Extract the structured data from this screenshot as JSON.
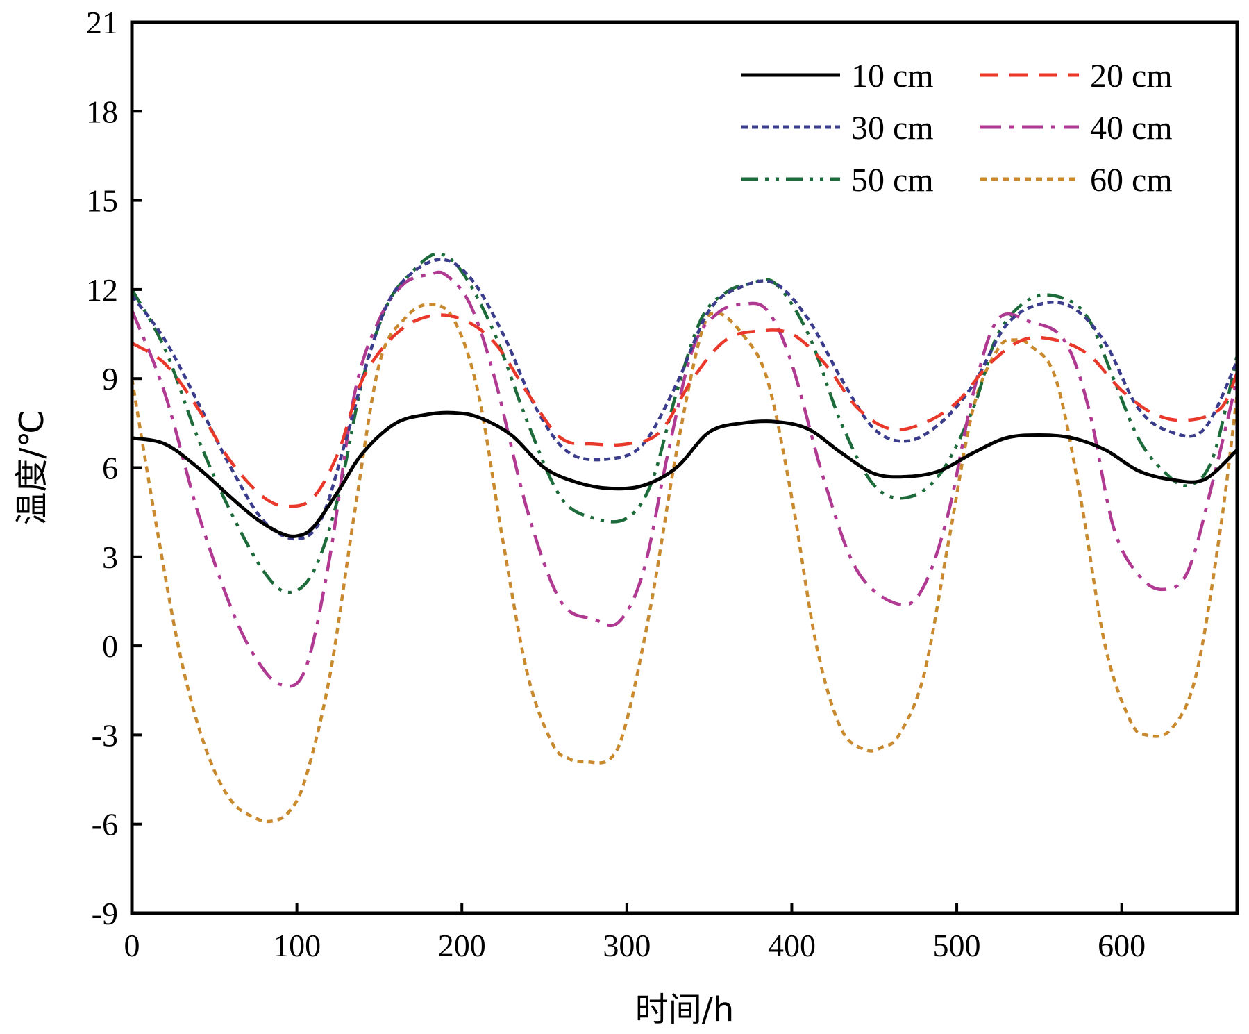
{
  "chart_data": {
    "type": "line",
    "title": "",
    "xlabel": "时间/h",
    "ylabel": "温度/℃",
    "xlim": [
      0,
      670
    ],
    "ylim": [
      -9,
      21
    ],
    "xticks": [
      0,
      100,
      200,
      300,
      400,
      500,
      600
    ],
    "yticks": [
      -9,
      -6,
      -3,
      0,
      3,
      6,
      9,
      12,
      15,
      18,
      21
    ],
    "legend_position": "top-right",
    "series": [
      {
        "name": "10 cm",
        "color": "#000000",
        "dash": "solid",
        "x": [
          0,
          20,
          40,
          60,
          75,
          90,
          100,
          110,
          125,
          140,
          160,
          180,
          195,
          210,
          230,
          250,
          270,
          290,
          310,
          330,
          350,
          370,
          390,
          410,
          430,
          450,
          470,
          490,
          510,
          530,
          550,
          570,
          590,
          610,
          630,
          650,
          670
        ],
        "y": [
          7.0,
          6.8,
          6.0,
          5.0,
          4.3,
          3.8,
          3.7,
          4.0,
          5.2,
          6.5,
          7.5,
          7.8,
          7.85,
          7.7,
          7.1,
          6.0,
          5.5,
          5.3,
          5.4,
          6.0,
          7.2,
          7.5,
          7.55,
          7.3,
          6.5,
          5.8,
          5.7,
          5.9,
          6.5,
          7.0,
          7.1,
          7.0,
          6.6,
          5.9,
          5.6,
          5.6,
          6.6
        ]
      },
      {
        "name": "20 cm",
        "color": "#e8392b",
        "dash": "long-dash",
        "x": [
          0,
          20,
          40,
          60,
          80,
          95,
          110,
          125,
          140,
          160,
          180,
          200,
          220,
          240,
          260,
          280,
          300,
          320,
          340,
          360,
          380,
          400,
          420,
          440,
          460,
          480,
          500,
          520,
          540,
          560,
          580,
          600,
          620,
          640,
          660,
          670
        ],
        "y": [
          10.2,
          9.5,
          8.0,
          6.2,
          5.0,
          4.7,
          5.0,
          6.5,
          9.0,
          10.5,
          11.1,
          11.0,
          10.2,
          8.5,
          7.0,
          6.8,
          6.8,
          7.2,
          9.0,
          10.3,
          10.6,
          10.5,
          9.5,
          8.0,
          7.3,
          7.5,
          8.2,
          9.5,
          10.3,
          10.3,
          9.8,
          8.6,
          7.8,
          7.6,
          8.0,
          9.2
        ]
      },
      {
        "name": "30 cm",
        "color": "#3b3d8c",
        "dash": "dotted",
        "x": [
          0,
          20,
          40,
          60,
          80,
          100,
          115,
          130,
          145,
          160,
          185,
          205,
          225,
          245,
          265,
          290,
          310,
          330,
          350,
          370,
          390,
          410,
          430,
          450,
          470,
          490,
          510,
          530,
          550,
          570,
          590,
          610,
          630,
          650,
          670
        ],
        "y": [
          11.8,
          10.3,
          8.2,
          6.0,
          4.2,
          3.6,
          4.3,
          7.0,
          10.0,
          12.0,
          13.0,
          12.4,
          10.5,
          8.0,
          6.5,
          6.3,
          6.8,
          8.8,
          11.3,
          12.1,
          12.2,
          11.0,
          9.0,
          7.3,
          6.9,
          7.5,
          8.8,
          10.8,
          11.5,
          11.4,
          10.2,
          8.0,
          7.2,
          7.3,
          9.6
        ]
      },
      {
        "name": "40 cm",
        "color": "#b03a92",
        "dash": "dash-dot",
        "x": [
          0,
          20,
          40,
          60,
          75,
          90,
          105,
          120,
          135,
          150,
          165,
          180,
          190,
          205,
          220,
          240,
          260,
          280,
          295,
          310,
          325,
          340,
          355,
          370,
          385,
          400,
          420,
          440,
          465,
          480,
          495,
          510,
          525,
          545,
          565,
          580,
          595,
          610,
          625,
          640,
          655,
          670
        ],
        "y": [
          11.3,
          8.5,
          4.5,
          1.3,
          -0.4,
          -1.3,
          -0.8,
          3.0,
          8.5,
          11.0,
          12.2,
          12.5,
          12.5,
          11.5,
          9.0,
          4.5,
          1.5,
          0.9,
          0.8,
          2.5,
          6.5,
          10.0,
          11.2,
          11.5,
          11.3,
          9.5,
          5.5,
          2.5,
          1.4,
          2.0,
          4.5,
          8.5,
          11.0,
          10.9,
          10.3,
          8.0,
          4.0,
          2.4,
          1.9,
          2.5,
          5.5,
          9.0
        ]
      },
      {
        "name": "50 cm",
        "color": "#1d6b3a",
        "dash": "dash-dot-dot",
        "x": [
          0,
          20,
          40,
          60,
          80,
          95,
          110,
          125,
          140,
          155,
          170,
          185,
          200,
          220,
          240,
          260,
          280,
          300,
          315,
          330,
          345,
          360,
          375,
          390,
          410,
          430,
          450,
          470,
          490,
          510,
          525,
          545,
          565,
          580,
          595,
          610,
          625,
          640,
          655,
          670
        ],
        "y": [
          12.0,
          10.0,
          7.0,
          4.5,
          2.5,
          1.8,
          2.5,
          5.0,
          9.0,
          11.5,
          12.6,
          13.2,
          12.6,
          10.5,
          7.5,
          5.0,
          4.3,
          4.3,
          5.5,
          8.5,
          11.0,
          11.9,
          12.2,
          12.2,
          10.5,
          7.5,
          5.4,
          5.0,
          5.8,
          8.0,
          10.5,
          11.7,
          11.7,
          11.0,
          9.0,
          7.0,
          5.9,
          5.4,
          6.3,
          9.8
        ]
      },
      {
        "name": "60 cm",
        "color": "#c98a2f",
        "dash": "short-dash",
        "x": [
          0,
          15,
          30,
          45,
          60,
          75,
          85,
          95,
          105,
          120,
          135,
          150,
          165,
          180,
          195,
          210,
          225,
          240,
          255,
          265,
          275,
          290,
          300,
          315,
          330,
          345,
          355,
          370,
          385,
          400,
          415,
          430,
          445,
          455,
          465,
          480,
          495,
          510,
          525,
          535,
          545,
          560,
          575,
          590,
          605,
          615,
          630,
          645,
          660,
          670
        ],
        "y": [
          9.0,
          4.0,
          -0.5,
          -3.5,
          -5.2,
          -5.8,
          -5.9,
          -5.6,
          -4.5,
          -1.0,
          4.5,
          9.5,
          11.0,
          11.5,
          11.0,
          8.5,
          3.5,
          -1.0,
          -3.3,
          -3.8,
          -3.9,
          -3.8,
          -2.5,
          1.5,
          6.5,
          10.5,
          11.2,
          10.5,
          9.0,
          5.0,
          0.0,
          -2.8,
          -3.5,
          -3.4,
          -3.0,
          -1.0,
          3.5,
          8.0,
          10.0,
          10.3,
          10.1,
          9.0,
          5.0,
          0.0,
          -2.5,
          -3.0,
          -2.8,
          -1.0,
          4.0,
          8.5
        ]
      }
    ]
  }
}
